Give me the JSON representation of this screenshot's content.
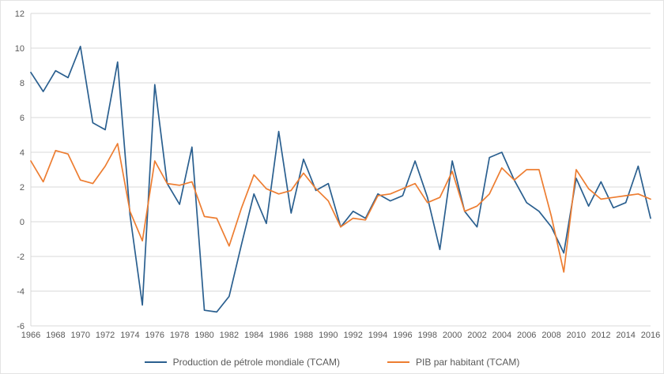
{
  "chart_data": {
    "type": "line",
    "title": "",
    "xlabel": "",
    "ylabel": "",
    "ylim": [
      -6,
      12
    ],
    "ytick_step": 2,
    "xtick_every": 2,
    "grid": true,
    "legend_position": "bottom",
    "grid_color": "#d9d9d9",
    "axis_text_color": "#595959",
    "x": [
      1966,
      1967,
      1968,
      1969,
      1970,
      1971,
      1972,
      1973,
      1974,
      1975,
      1976,
      1977,
      1978,
      1979,
      1980,
      1981,
      1982,
      1983,
      1984,
      1985,
      1986,
      1987,
      1988,
      1989,
      1990,
      1991,
      1992,
      1993,
      1994,
      1995,
      1996,
      1997,
      1998,
      1999,
      2000,
      2001,
      2002,
      2003,
      2004,
      2005,
      2006,
      2007,
      2008,
      2009,
      2010,
      2011,
      2012,
      2013,
      2014,
      2015,
      2016
    ],
    "series": [
      {
        "name": "Production de pétrole mondiale (TCAM)",
        "color": "#2a5f8f",
        "values": [
          8.6,
          7.5,
          8.7,
          8.3,
          10.1,
          5.7,
          5.3,
          9.2,
          0.4,
          -4.8,
          7.9,
          2.2,
          1.0,
          4.3,
          -5.1,
          -5.2,
          -4.3,
          -1.3,
          1.6,
          -0.1,
          5.2,
          0.5,
          3.6,
          1.8,
          2.2,
          -0.3,
          0.6,
          0.2,
          1.6,
          1.2,
          1.5,
          3.5,
          1.4,
          -1.6,
          3.5,
          0.6,
          -0.3,
          3.7,
          4.0,
          2.4,
          1.1,
          0.6,
          -0.3,
          -1.8,
          2.5,
          0.9,
          2.3,
          0.8,
          1.1,
          3.2,
          0.2
        ]
      },
      {
        "name": "PIB par habitant (TCAM)",
        "color": "#ed7d31",
        "values": [
          3.5,
          2.3,
          4.1,
          3.9,
          2.4,
          2.2,
          3.2,
          4.5,
          0.6,
          -1.1,
          3.5,
          2.2,
          2.1,
          2.3,
          0.3,
          0.2,
          -1.4,
          0.8,
          2.7,
          1.9,
          1.6,
          1.8,
          2.8,
          1.9,
          1.2,
          -0.3,
          0.2,
          0.1,
          1.5,
          1.6,
          1.9,
          2.2,
          1.1,
          1.4,
          2.9,
          0.6,
          0.9,
          1.6,
          3.1,
          2.4,
          3.0,
          3.0,
          0.3,
          -2.9,
          3.0,
          1.9,
          1.3,
          1.4,
          1.5,
          1.6,
          1.3
        ]
      }
    ]
  }
}
